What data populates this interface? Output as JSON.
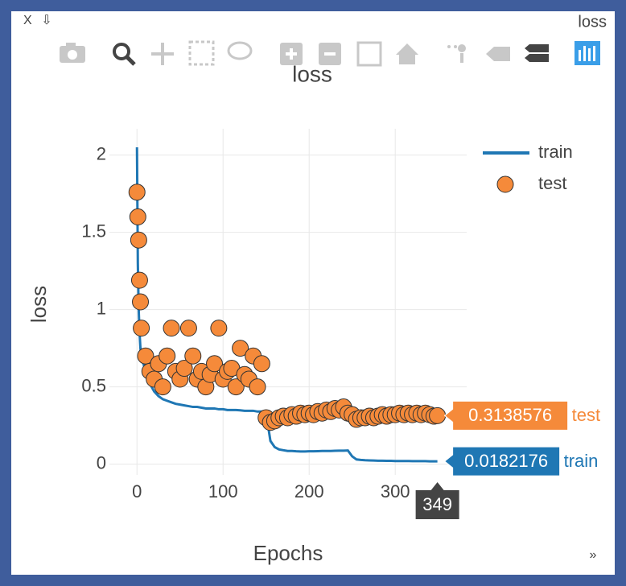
{
  "window": {
    "close": "X",
    "download": "⇩",
    "title": "loss",
    "expand": "»"
  },
  "chart_data": {
    "type": "line",
    "title": "loss",
    "x_label": "Epochs",
    "y_label": "loss",
    "x": [
      0,
      1,
      2,
      3,
      4,
      5,
      10,
      15,
      20,
      25,
      30,
      35,
      40,
      45,
      50,
      55,
      60,
      65,
      70,
      75,
      80,
      85,
      90,
      95,
      100,
      105,
      110,
      115,
      120,
      125,
      130,
      135,
      140,
      145,
      150,
      155,
      160,
      165,
      170,
      175,
      180,
      185,
      190,
      195,
      200,
      205,
      210,
      215,
      220,
      225,
      230,
      235,
      240,
      245,
      250,
      255,
      260,
      265,
      270,
      275,
      280,
      285,
      290,
      295,
      300,
      305,
      310,
      315,
      320,
      325,
      330,
      335,
      340,
      345,
      349
    ],
    "series": [
      {
        "name": "train",
        "color": "#1f77b4",
        "mode": "lines",
        "values": [
          2.05,
          1.3,
          1.0,
          0.85,
          0.75,
          0.7,
          0.6,
          0.52,
          0.47,
          0.44,
          0.42,
          0.41,
          0.4,
          0.39,
          0.385,
          0.38,
          0.375,
          0.37,
          0.37,
          0.365,
          0.36,
          0.36,
          0.36,
          0.355,
          0.355,
          0.35,
          0.35,
          0.35,
          0.348,
          0.345,
          0.345,
          0.345,
          0.34,
          0.34,
          0.33,
          0.15,
          0.11,
          0.095,
          0.09,
          0.085,
          0.085,
          0.083,
          0.082,
          0.082,
          0.083,
          0.083,
          0.084,
          0.085,
          0.085,
          0.085,
          0.086,
          0.087,
          0.087,
          0.088,
          0.05,
          0.03,
          0.027,
          0.025,
          0.024,
          0.023,
          0.022,
          0.022,
          0.021,
          0.021,
          0.02,
          0.02,
          0.02,
          0.02,
          0.019,
          0.019,
          0.019,
          0.019,
          0.018,
          0.018,
          0.0182176
        ]
      },
      {
        "name": "test",
        "color": "#f58a3a",
        "mode": "markers",
        "values": [
          1.76,
          1.6,
          1.45,
          1.19,
          1.05,
          0.88,
          0.7,
          0.6,
          0.55,
          0.65,
          0.5,
          0.7,
          0.88,
          0.6,
          0.55,
          0.62,
          0.88,
          0.7,
          0.55,
          0.6,
          0.5,
          0.58,
          0.65,
          0.88,
          0.55,
          0.6,
          0.62,
          0.5,
          0.75,
          0.58,
          0.55,
          0.7,
          0.5,
          0.65,
          0.3,
          0.27,
          0.28,
          0.3,
          0.31,
          0.3,
          0.32,
          0.31,
          0.33,
          0.32,
          0.33,
          0.32,
          0.34,
          0.33,
          0.35,
          0.34,
          0.36,
          0.35,
          0.37,
          0.33,
          0.32,
          0.29,
          0.3,
          0.3,
          0.31,
          0.3,
          0.31,
          0.32,
          0.31,
          0.32,
          0.32,
          0.33,
          0.32,
          0.33,
          0.32,
          0.33,
          0.32,
          0.33,
          0.32,
          0.31,
          0.3138576
        ]
      }
    ],
    "hover": {
      "x": 349,
      "train": 0.0182176,
      "test": 0.3138576
    },
    "xlim": [
      -32,
      383
    ],
    "ylim": [
      -0.07,
      2.17
    ],
    "xticks": [
      0,
      100,
      200,
      300
    ],
    "yticks": [
      0,
      0.5,
      1,
      1.5,
      2
    ],
    "grid": true,
    "legend": "top-right"
  }
}
